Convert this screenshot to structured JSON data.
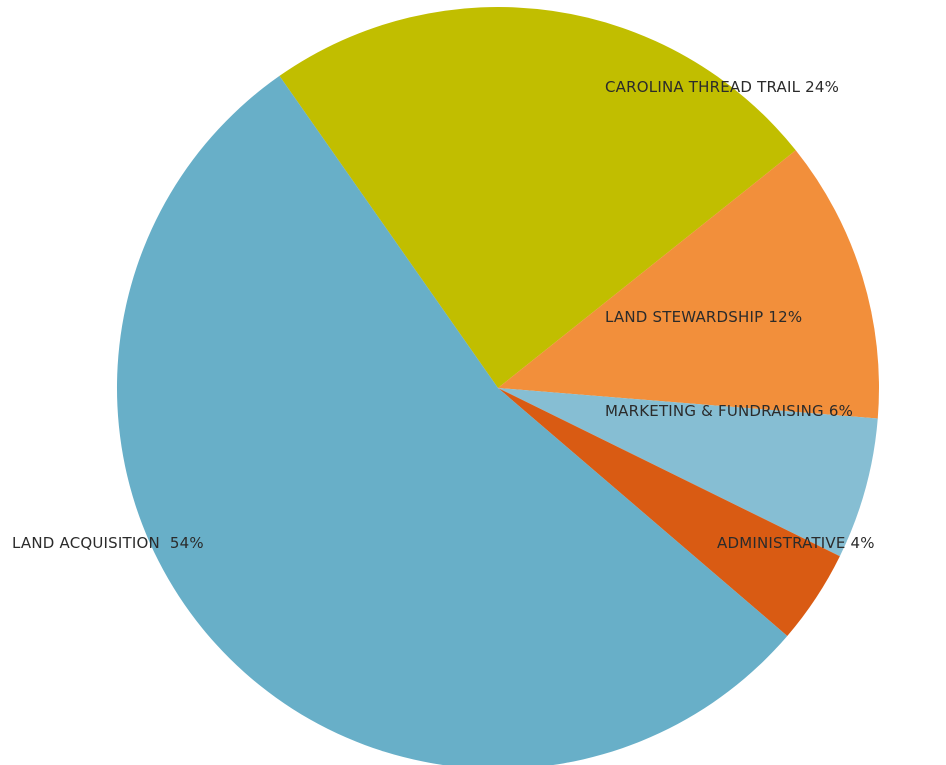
{
  "chart_data": {
    "type": "pie",
    "title": "",
    "slices": [
      {
        "label": "CAROLINA THREAD TRAIL 24%",
        "value": 24,
        "color": "#C1BE00"
      },
      {
        "label": "LAND STEWARDSHIP 12%",
        "value": 12,
        "color": "#F28F3B"
      },
      {
        "label": "MARKETING & FUNDRAISING 6%",
        "value": 6,
        "color": "#86BED3"
      },
      {
        "label": "ADMINISTRATIVE 4%",
        "value": 4,
        "color": "#D95B13"
      },
      {
        "label": "LAND ACQUISITION  54%",
        "value": 54,
        "color": "#68AFC8"
      }
    ],
    "start_angle_deg": -35,
    "direction": "clockwise"
  }
}
